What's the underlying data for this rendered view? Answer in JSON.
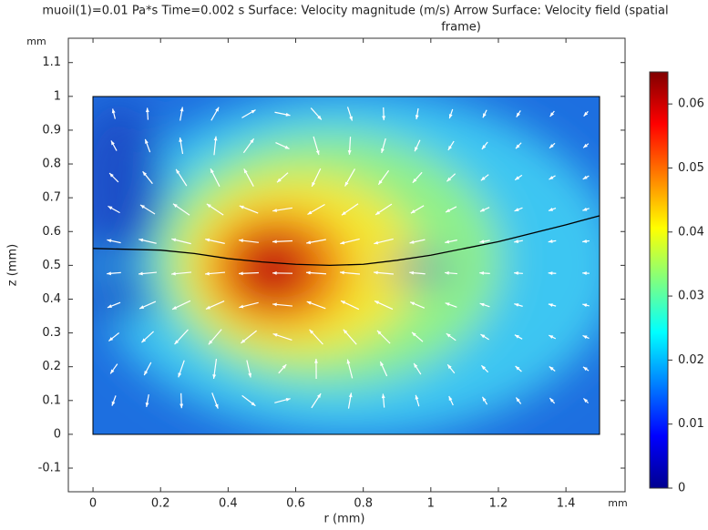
{
  "chart_data": {
    "type": "surface",
    "title": [
      "muoil(1)=0.01 Pa*s Time=0.002 s Surface: Velocity magnitude (m/s)  Arrow Surface: Velocity field (spatial",
      "frame)"
    ],
    "x_label": "r (mm)",
    "y_label": "z (mm)",
    "x_unit": "mm",
    "y_unit": "mm",
    "xlim": [
      -0.073,
      1.575
    ],
    "ylim": [
      -0.17,
      1.172
    ],
    "xticks": [
      0,
      0.2,
      0.4,
      0.6,
      0.8,
      1,
      1.2,
      1.4
    ],
    "yticks": [
      -0.1,
      0,
      0.1,
      0.2,
      0.3,
      0.4,
      0.5,
      0.6,
      0.7,
      0.8,
      0.9,
      1,
      1.1
    ],
    "colorbar": {
      "clim": [
        0,
        0.065
      ],
      "ticks": [
        0,
        0.01,
        0.02,
        0.03,
        0.04,
        0.05,
        0.06
      ]
    },
    "interface": {
      "x": [
        0,
        0.2,
        0.3,
        0.4,
        0.5,
        0.6,
        0.7,
        0.8,
        0.9,
        1.0,
        1.1,
        1.2,
        1.3,
        1.4,
        1.5
      ],
      "y": [
        0.55,
        0.545,
        0.535,
        0.52,
        0.51,
        0.503,
        0.5,
        0.503,
        0.515,
        0.53,
        0.55,
        0.57,
        0.595,
        0.62,
        0.647
      ],
      "color": "#000000"
    }
  }
}
